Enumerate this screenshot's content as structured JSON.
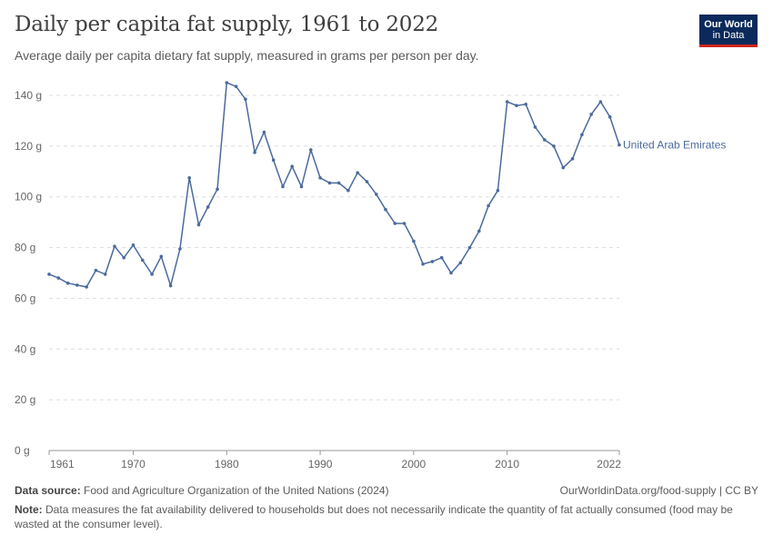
{
  "header": {
    "title": "Daily per capita fat supply, 1961 to 2022",
    "subtitle": "Average daily per capita dietary fat supply, measured in grams per person per day.",
    "logo_line1": "Our World",
    "logo_line2": "in Data"
  },
  "footer": {
    "source_label": "Data source:",
    "source_text": "Food and Agriculture Organization of the United Nations (2024)",
    "credit": "OurWorldinData.org/food-supply | CC BY",
    "note_label": "Note:",
    "note_text": "Data measures the fat availability delivered to households but does not necessarily indicate the quantity of fat actually consumed (food may be wasted at the consumer level)."
  },
  "colors": {
    "series": "#4c6a9c",
    "grid": "#dddddd",
    "axis": "#666666"
  },
  "chart_data": {
    "type": "line",
    "title": "Daily per capita fat supply, 1961 to 2022",
    "xlim": [
      1961,
      2022
    ],
    "ylim": [
      0,
      140
    ],
    "y_ticks": [
      0,
      20,
      40,
      60,
      80,
      100,
      120,
      140
    ],
    "y_tick_labels": [
      "0 g",
      "20 g",
      "40 g",
      "60 g",
      "80 g",
      "100 g",
      "120 g",
      "140 g"
    ],
    "x_ticks": [
      1961,
      1970,
      1980,
      1990,
      2000,
      2010,
      2022
    ],
    "x_tick_labels": [
      "1961",
      "1970",
      "1980",
      "1990",
      "2000",
      "2010",
      "2022"
    ],
    "grid": "horizontal dashed",
    "legend": "inline label at line end",
    "series": [
      {
        "name": "United Arab Emirates",
        "x": [
          1961,
          1962,
          1963,
          1964,
          1965,
          1966,
          1967,
          1968,
          1969,
          1970,
          1971,
          1972,
          1973,
          1974,
          1975,
          1976,
          1977,
          1978,
          1979,
          1980,
          1981,
          1982,
          1983,
          1984,
          1985,
          1986,
          1987,
          1988,
          1989,
          1990,
          1991,
          1992,
          1993,
          1994,
          1995,
          1996,
          1997,
          1998,
          1999,
          2000,
          2001,
          2002,
          2003,
          2004,
          2005,
          2006,
          2007,
          2008,
          2009,
          2010,
          2011,
          2012,
          2013,
          2014,
          2015,
          2016,
          2017,
          2018,
          2019,
          2020,
          2021,
          2022
        ],
        "y": [
          69.5,
          68,
          66,
          65.2,
          64.5,
          71,
          69.5,
          80.5,
          76,
          81,
          75,
          69.5,
          76.5,
          65,
          79.5,
          107.5,
          89,
          96,
          103,
          145,
          143.5,
          138.5,
          117.5,
          125.5,
          114.5,
          104,
          112,
          104,
          118.5,
          107.5,
          105.5,
          105.5,
          102.5,
          109.5,
          106,
          101,
          95,
          89.5,
          89.5,
          82.5,
          73.5,
          74.5,
          76,
          70,
          74,
          80,
          86.5,
          96.5,
          102.5,
          137.5,
          136,
          136.5,
          127.5,
          122.5,
          120,
          111.5,
          115,
          124.5,
          132.5,
          137.5,
          131.5,
          120.5
        ]
      }
    ]
  }
}
